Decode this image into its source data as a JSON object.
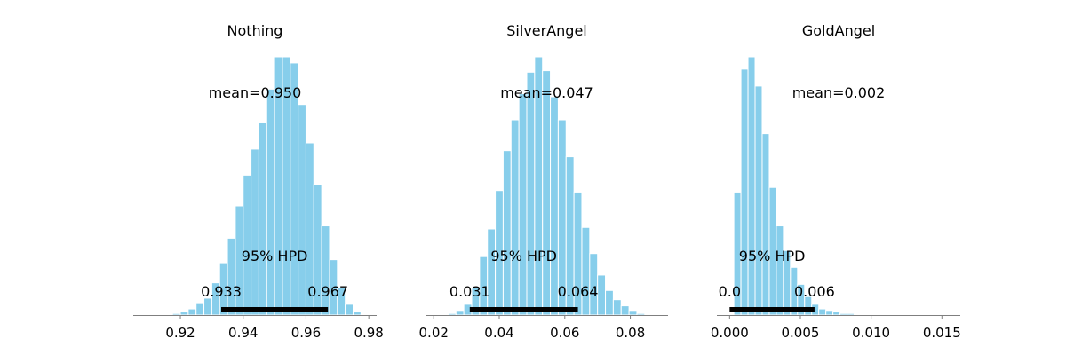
{
  "chart_data": [
    {
      "type": "bar",
      "title": "Nothing",
      "mean_label": "mean=0.950",
      "hpd_label": "95% HPD",
      "hpd_low_label": "0.933",
      "hpd_high_label": "0.967",
      "hpd": [
        0.933,
        0.967
      ],
      "xlim": [
        0.905,
        0.9825
      ],
      "xticks": [
        0.92,
        0.94,
        0.96,
        0.98
      ],
      "xtick_labels": [
        "0.92",
        "0.94",
        "0.96",
        "0.98"
      ],
      "bin_width": 0.0025,
      "bins_start": 0.9175,
      "values": [
        1,
        2,
        4,
        8,
        11,
        21,
        34,
        50,
        71,
        91,
        108,
        125,
        147,
        168,
        168,
        164,
        137,
        112,
        85,
        58,
        36,
        18,
        7,
        2
      ],
      "color": "#87ceeb"
    },
    {
      "type": "bar",
      "title": "SilverAngel",
      "mean_label": "mean=0.047",
      "hpd_label": "95% HPD",
      "hpd_low_label": "0.031",
      "hpd_high_label": "0.064",
      "hpd": [
        0.031,
        0.064
      ],
      "xlim": [
        0.0175,
        0.0915
      ],
      "xticks": [
        0.02,
        0.04,
        0.06,
        0.08
      ],
      "xtick_labels": [
        "0.02",
        "0.04",
        "0.06",
        "0.08"
      ],
      "bin_width": 0.0024,
      "bins_start": 0.0244,
      "values": [
        1,
        3,
        7,
        18,
        38,
        56,
        81,
        107,
        127,
        144,
        158,
        168,
        159,
        142,
        127,
        103,
        80,
        57,
        40,
        26,
        16,
        10,
        6,
        3,
        1
      ],
      "color": "#87ceeb"
    },
    {
      "type": "bar",
      "title": "GoldAngel",
      "mean_label": "mean=0.002",
      "hpd_label": "95% HPD",
      "hpd_low_label": "0.0",
      "hpd_high_label": "0.006",
      "hpd": [
        0.0,
        0.006
      ],
      "xlim": [
        -0.0009,
        0.0163
      ],
      "xticks": [
        0.0,
        0.005,
        0.01,
        0.015
      ],
      "xtick_labels": [
        "0.000",
        "0.005",
        "0.010",
        "0.015"
      ],
      "bin_width": 0.0005,
      "bins_start": 0.0003,
      "values": [
        80,
        160,
        168,
        149,
        118,
        83,
        58,
        42,
        31,
        20,
        12,
        7,
        4,
        3,
        2,
        1,
        1
      ],
      "color": "#87ceeb"
    }
  ]
}
